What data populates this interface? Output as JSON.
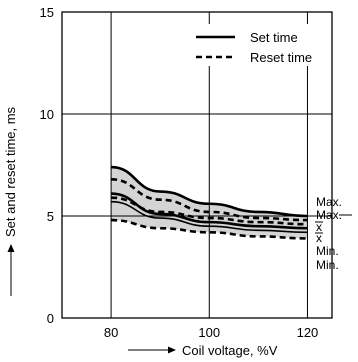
{
  "chart_data": {
    "type": "line",
    "xlabel": "Coil voltage, %V",
    "ylabel": "Set and reset time, ms",
    "xlim": [
      70,
      125
    ],
    "ylim": [
      0,
      15
    ],
    "x_ticks": [
      "80",
      "100",
      "120"
    ],
    "y_ticks": [
      "0",
      "5",
      "10",
      "15"
    ],
    "grid": true,
    "legend_position": "top-right",
    "legend": [
      {
        "label": "Set time",
        "style": "solid"
      },
      {
        "label": "Reset time",
        "style": "dashed"
      }
    ],
    "series": [
      {
        "name": "Set time",
        "stat": "Max.",
        "style": "solid",
        "width": "thick",
        "x": [
          80,
          90,
          100,
          110,
          120
        ],
        "y": [
          7.4,
          6.2,
          5.6,
          5.2,
          5.0
        ]
      },
      {
        "name": "Set time",
        "stat": "x̄",
        "style": "solid",
        "width": "thick",
        "x": [
          80,
          90,
          100,
          110,
          120
        ],
        "y": [
          6.1,
          5.1,
          4.7,
          4.5,
          4.4
        ]
      },
      {
        "name": "Set time",
        "stat": "Min.",
        "style": "solid",
        "width": "thin",
        "x": [
          80,
          90,
          100,
          110,
          120
        ],
        "y": [
          5.7,
          4.9,
          4.5,
          4.3,
          4.2
        ]
      },
      {
        "name": "Reset time",
        "stat": "Max.",
        "style": "dashed",
        "width": "thick",
        "x": [
          80,
          90,
          100,
          110,
          120
        ],
        "y": [
          6.8,
          5.8,
          5.2,
          4.9,
          4.8
        ]
      },
      {
        "name": "Reset time",
        "stat": "x̄",
        "style": "dashed",
        "width": "thick",
        "x": [
          80,
          90,
          100,
          110,
          120
        ],
        "y": [
          5.9,
          5.2,
          4.9,
          4.7,
          4.6
        ]
      },
      {
        "name": "Reset time",
        "stat": "Min.",
        "style": "dashed",
        "width": "thick",
        "x": [
          80,
          90,
          100,
          110,
          120
        ],
        "y": [
          4.8,
          4.4,
          4.2,
          4.0,
          3.9
        ]
      }
    ],
    "annotations": [
      "Max.",
      "Max.",
      "x",
      "x",
      "Min.",
      "Min."
    ],
    "band_fill": "#d4d4d4"
  }
}
